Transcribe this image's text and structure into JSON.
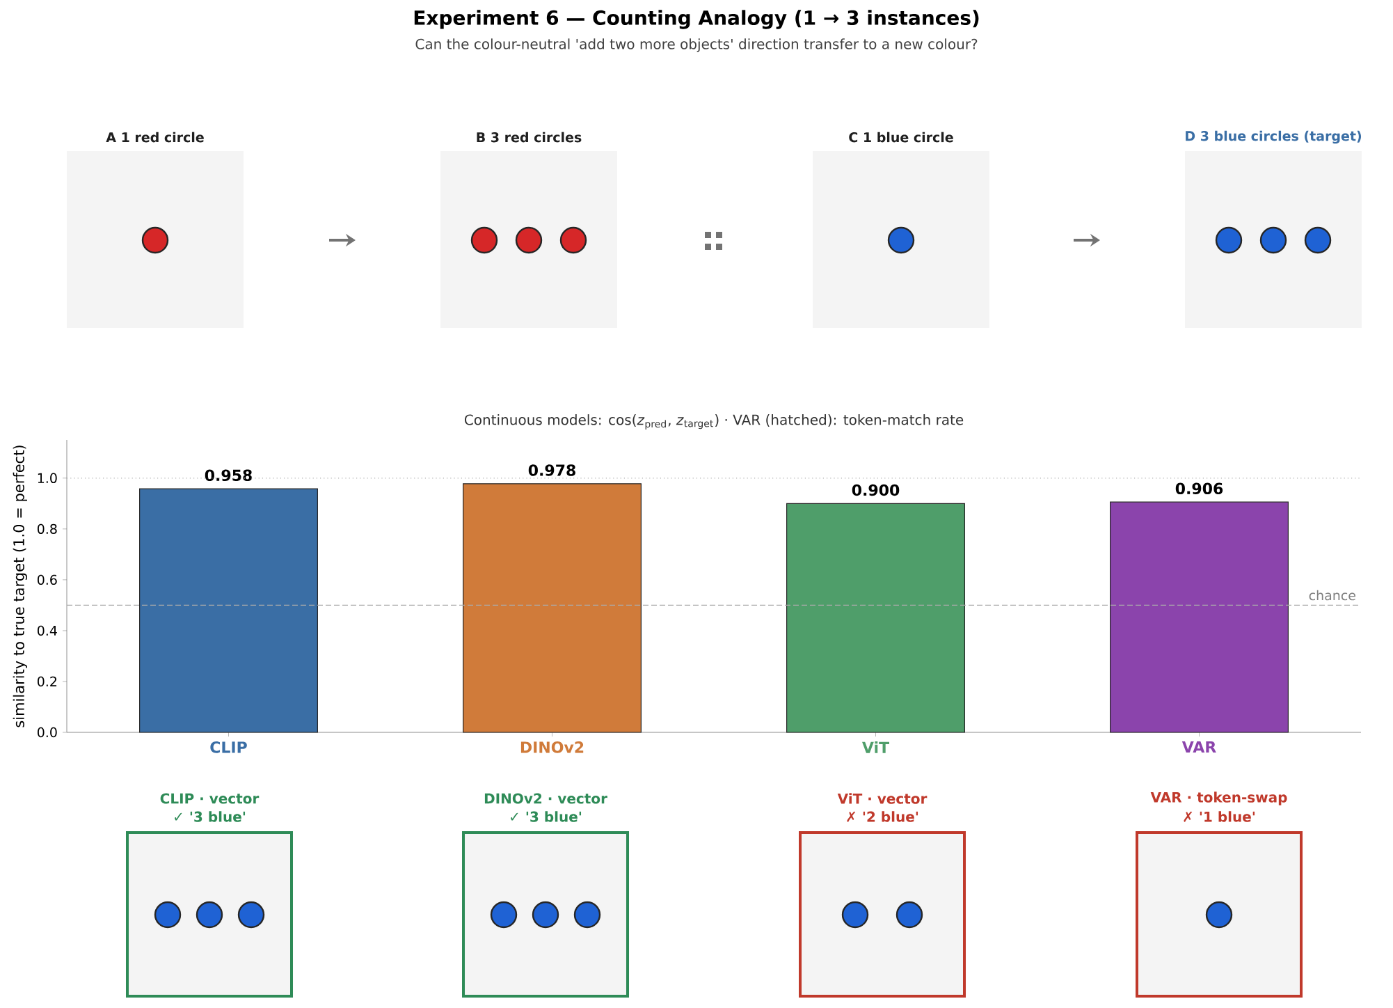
{
  "chart_data": {
    "type": "bar",
    "title": "Experiment 6 — Counting Analogy   (1 → 3 instances)",
    "subtitle": "Can the colour-neutral 'add two more objects' direction transfer to a new colour?",
    "ylabel": "similarity to true target  (1.0 = perfect)",
    "categories": [
      "CLIP",
      "DINOv2",
      "ViT",
      "VAR"
    ],
    "values": [
      0.958,
      0.978,
      0.9,
      0.906
    ],
    "colors": [
      "#3a6ea5",
      "#d07b3a",
      "#4f9e6a",
      "#8b44ac"
    ],
    "value_labels": [
      "0.958",
      "0.978",
      "0.900",
      "0.906"
    ],
    "ylim": [
      0,
      1.15
    ],
    "yticks": [
      {
        "value": 0,
        "label": "0.0"
      },
      {
        "value": 0.2,
        "label": "0.2"
      },
      {
        "value": 0.4,
        "label": "0.4"
      },
      {
        "value": 0.6,
        "label": "0.6"
      },
      {
        "value": 0.8,
        "label": "0.8"
      },
      {
        "value": 1.0,
        "label": "1.0"
      }
    ],
    "ref_lines": [
      {
        "axis": "y",
        "value": 1.0,
        "line_style": "dotted",
        "color": "#b0b0b0"
      },
      {
        "axis": "y",
        "value": 0.5,
        "label": "chance",
        "line_style": "dashed",
        "color": "#aaaaaa"
      }
    ],
    "annotations": [
      "A   1 red circle",
      "B   3 red circles",
      "C   1 blue circle",
      "D   3 blue circles (target)",
      "Continuous models: cos(*z*$_{pred}$, *z*$_{target}$)   ·   VAR (hatched): token-match rate",
      "CLIP  ·  vector",
      "✓  '3 blue'",
      "DINOv2  ·  vector",
      "✓  '3 blue'",
      "ViT  ·  vector",
      "✗  '2 blue'",
      "VAR  ·  token-swap",
      "✗  '1 blue'"
    ]
  }
}
